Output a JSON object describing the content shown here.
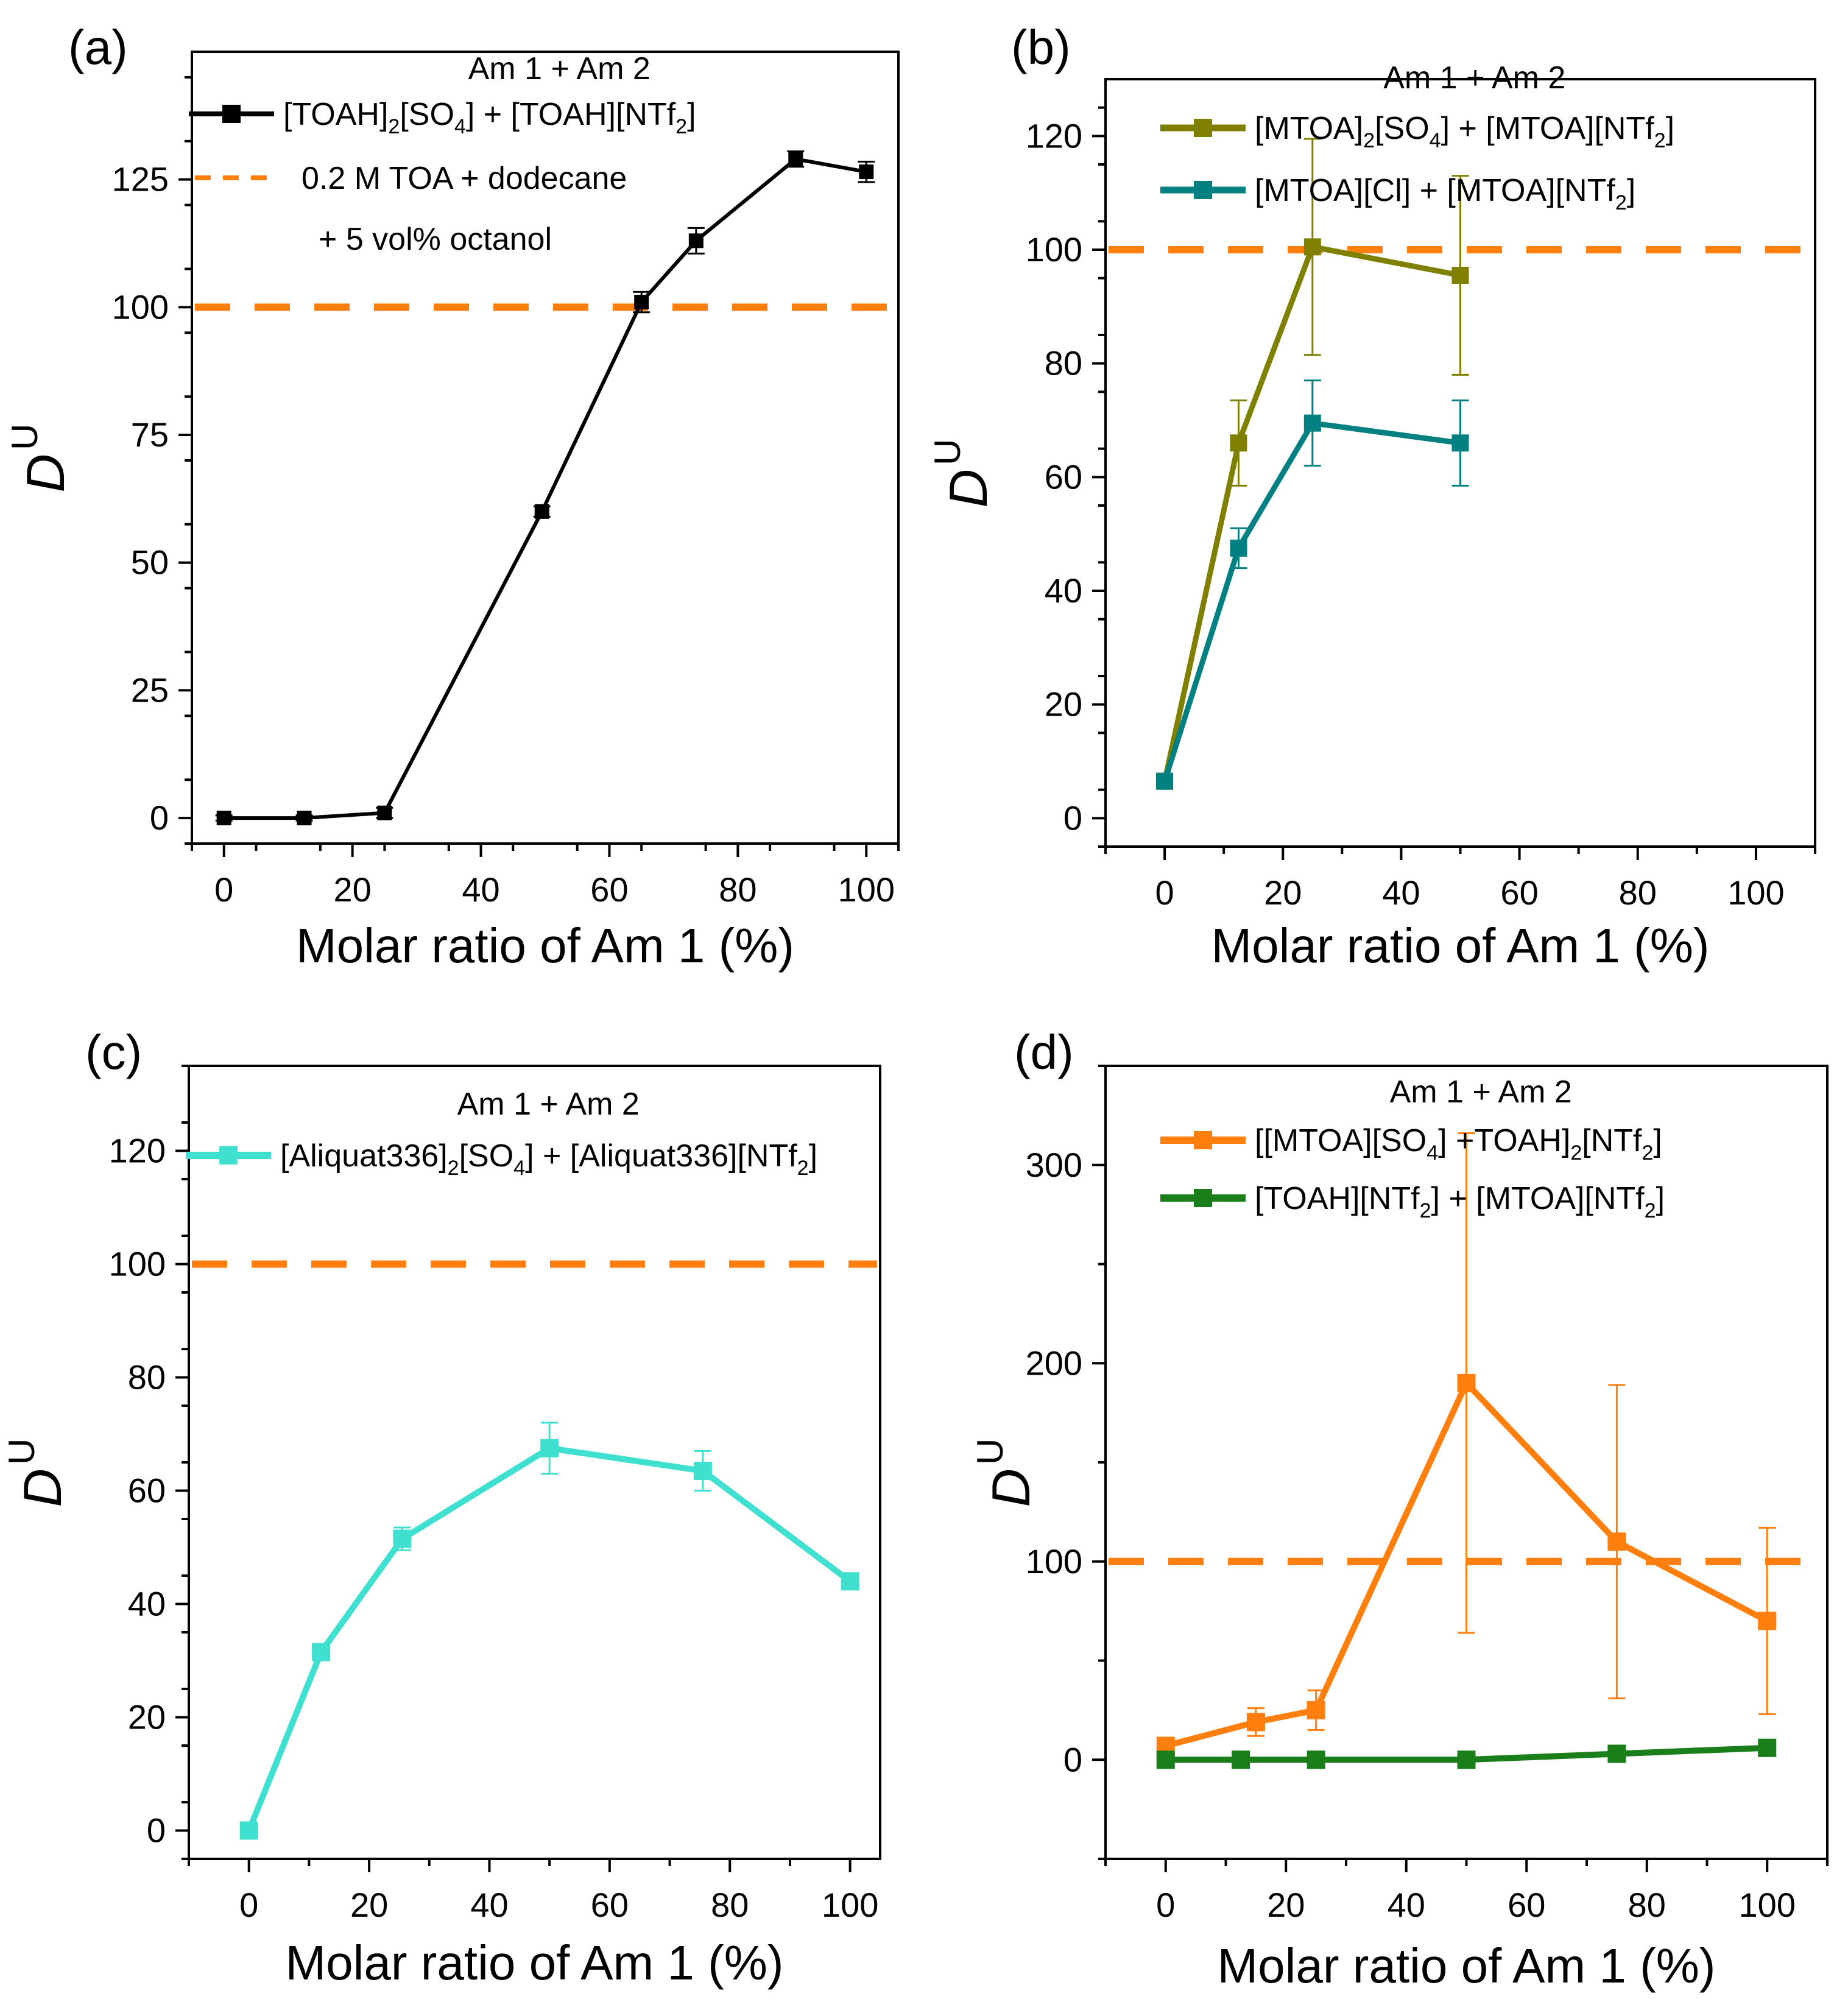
{
  "figure": {
    "y_symbol": "D",
    "y_subscript": "U"
  },
  "chart_data": [
    {
      "type": "line",
      "panel_label": "(a)",
      "xlabel": "Molar ratio of Am 1 (%)",
      "ylabel": "D",
      "ylabel_sub": "U",
      "xlim": [
        -5,
        105
      ],
      "ylim": [
        -5,
        150
      ],
      "xticks": [
        0,
        20,
        40,
        60,
        80,
        100
      ],
      "yticks": [
        0,
        25,
        50,
        75,
        100,
        125
      ],
      "minor_y": 12.5,
      "legend_title": "Am 1 + Am 2",
      "legend_position": "top",
      "reference_line": {
        "y": 100,
        "color": "#ff7f0e",
        "label": "0.2 M TOA + dodecane",
        "label2": "+ 5 vol% octanol"
      },
      "series": [
        {
          "name": "[TOAH]2[SO4] + [TOAH][NTf2]",
          "label_parts": [
            [
              "[TOAH]",
              false
            ],
            [
              "2",
              true
            ],
            [
              "[SO",
              false
            ],
            [
              "4",
              true
            ],
            [
              "] + [TOAH][NTf",
              false
            ],
            [
              "2",
              true
            ],
            [
              "]",
              false
            ]
          ],
          "color": "#000000",
          "marker_size": 24,
          "line_width": 6,
          "x": [
            0,
            12.5,
            25,
            49.5,
            65,
            73.5,
            89,
            100
          ],
          "y": [
            0,
            0,
            1,
            60,
            101,
            113,
            129,
            126.5
          ],
          "err": [
            0.5,
            0.5,
            1,
            1,
            2,
            2.5,
            1.5,
            2
          ]
        }
      ]
    },
    {
      "type": "line",
      "panel_label": "(b)",
      "xlabel": "Molar ratio of Am 1 (%)",
      "ylabel": "D",
      "ylabel_sub": "U",
      "xlim": [
        -10,
        110
      ],
      "ylim": [
        -5,
        130
      ],
      "xticks": [
        0,
        20,
        40,
        60,
        80,
        100
      ],
      "yticks": [
        0,
        20,
        40,
        60,
        80,
        100,
        120
      ],
      "minor_y": 10,
      "legend_title": "Am 1 + Am 2",
      "legend_position": "top",
      "reference_line": {
        "y": 100,
        "color": "#ff7f0e"
      },
      "series": [
        {
          "name": "[MTOA]2[SO4] + [MTOA][NTf2]",
          "label_parts": [
            [
              "[MTOA]",
              false
            ],
            [
              "2",
              true
            ],
            [
              "[SO",
              false
            ],
            [
              "4",
              true
            ],
            [
              "] + [MTOA][NTf",
              false
            ],
            [
              "2",
              true
            ],
            [
              "]",
              false
            ]
          ],
          "color": "#808000",
          "marker_size": 28,
          "line_width": 9,
          "x": [
            0,
            12.5,
            25,
            50
          ],
          "y": [
            6.5,
            66,
            100.5,
            95.5
          ],
          "err": [
            0,
            7.5,
            19,
            17.5
          ]
        },
        {
          "name": "[MTOA][Cl] + [MTOA][NTf2]",
          "label_parts": [
            [
              "[MTOA][Cl] + [MTOA][NTf",
              false
            ],
            [
              "2",
              true
            ],
            [
              "]",
              false
            ]
          ],
          "color": "#008080",
          "marker_size": 28,
          "line_width": 9,
          "x": [
            0,
            12.5,
            25,
            50
          ],
          "y": [
            6.5,
            47.5,
            69.5,
            66
          ],
          "err": [
            0,
            3.5,
            7.5,
            7.5
          ]
        }
      ]
    },
    {
      "type": "line",
      "panel_label": "(c)",
      "xlabel": "Molar ratio of Am 1 (%)",
      "ylabel": "D",
      "ylabel_sub": "U",
      "xlim": [
        -10,
        105
      ],
      "ylim": [
        -5,
        135
      ],
      "xticks": [
        0,
        20,
        40,
        60,
        80,
        100
      ],
      "yticks": [
        0,
        20,
        40,
        60,
        80,
        100,
        120
      ],
      "minor_y": 10,
      "legend_title": "Am 1 + Am 2",
      "legend_position": "top",
      "reference_line": {
        "y": 100,
        "color": "#ff7f0e"
      },
      "series": [
        {
          "name": "[Aliquat336]2[SO4] + [Aliquat336][NTf2]",
          "label_parts": [
            [
              "[Aliquat336]",
              false
            ],
            [
              "2",
              true
            ],
            [
              "[SO",
              false
            ],
            [
              "4",
              true
            ],
            [
              "] + [Aliquat336][NTf",
              false
            ],
            [
              "2",
              true
            ],
            [
              "]",
              false
            ]
          ],
          "color": "#40e0d0",
          "marker_size": 30,
          "line_width": 10,
          "x": [
            0,
            12,
            25.5,
            50,
            75.5,
            100
          ],
          "y": [
            0,
            31.5,
            51.5,
            67.5,
            63.5,
            44
          ],
          "err": [
            0,
            1,
            2,
            4.5,
            3.5,
            0.5
          ]
        }
      ]
    },
    {
      "type": "line",
      "panel_label": "(d)",
      "xlabel": "Molar ratio of Am 1 (%)",
      "ylabel": "D",
      "ylabel_sub": "U",
      "xlim": [
        -10,
        110
      ],
      "ylim": [
        -50,
        350
      ],
      "xticks": [
        0,
        20,
        40,
        60,
        80,
        100
      ],
      "yticks": [
        0,
        100,
        200,
        300
      ],
      "minor_y": 50,
      "legend_title": "Am 1 + Am 2",
      "legend_position": "top",
      "reference_line": {
        "y": 100,
        "color": "#ff7f0e"
      },
      "series": [
        {
          "name": "[[MTOA][SO4] +TOAH]2[NTf2]",
          "label_parts": [
            [
              "[[MTOA][SO",
              false
            ],
            [
              "4",
              true
            ],
            [
              "] +TOAH]",
              false
            ],
            [
              "2",
              true
            ],
            [
              "[NTf",
              false
            ],
            [
              "2",
              true
            ],
            [
              "]",
              false
            ]
          ],
          "color": "#ff7f0e",
          "marker_size": 30,
          "line_width": 10,
          "x": [
            0,
            15,
            25,
            50,
            75,
            100
          ],
          "y": [
            7,
            19,
            25,
            190,
            110,
            70
          ],
          "err": [
            0,
            7,
            10,
            126,
            79,
            47
          ]
        },
        {
          "name": "[TOAH][NTf2] + [MTOA][NTf2]",
          "label_parts": [
            [
              "[TOAH][NTf",
              false
            ],
            [
              "2",
              true
            ],
            [
              "] + [MTOA][NTf",
              false
            ],
            [
              "2",
              true
            ],
            [
              "]",
              false
            ]
          ],
          "color": "#1a7f1a",
          "marker_size": 30,
          "line_width": 10,
          "x": [
            0,
            12.5,
            25,
            50,
            75,
            100
          ],
          "y": [
            0,
            0,
            0,
            0,
            3,
            6
          ],
          "err": [
            0,
            0,
            0,
            0,
            0,
            0
          ]
        }
      ]
    }
  ]
}
